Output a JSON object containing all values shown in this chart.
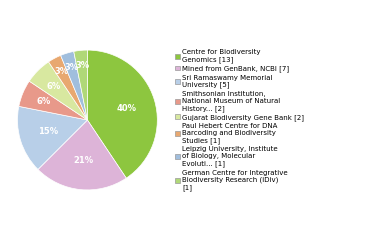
{
  "labels": [
    "Centre for Biodiversity\nGenomics [13]",
    "Mined from GenBank, NCBI [7]",
    "Sri Ramaswamy Memorial\nUniversity [5]",
    "Smithsonian Institution,\nNational Museum of Natural\nHistory... [2]",
    "Gujarat Biodiversity Gene Bank [2]",
    "Paul Hebert Centre for DNA\nBarcoding and Biodiversity\nStudies [1]",
    "Leipzig University, Institute\nof Biology, Molecular\nEvoluti... [1]",
    "German Centre for Integrative\nBiodiversity Research (iDiv)\n[1]"
  ],
  "values": [
    13,
    7,
    5,
    2,
    2,
    1,
    1,
    1
  ],
  "colors": [
    "#8dc63f",
    "#ddb4d8",
    "#b8cfe8",
    "#e8998a",
    "#d8e8a0",
    "#e8a870",
    "#a0bedd",
    "#b0d878"
  ],
  "pct_labels": [
    "40%",
    "21%",
    "15%",
    "6%",
    "6%",
    "3%",
    "3%",
    "3%"
  ],
  "startangle": 90,
  "legend_fontsize": 5.0,
  "pct_fontsize": 6.0
}
